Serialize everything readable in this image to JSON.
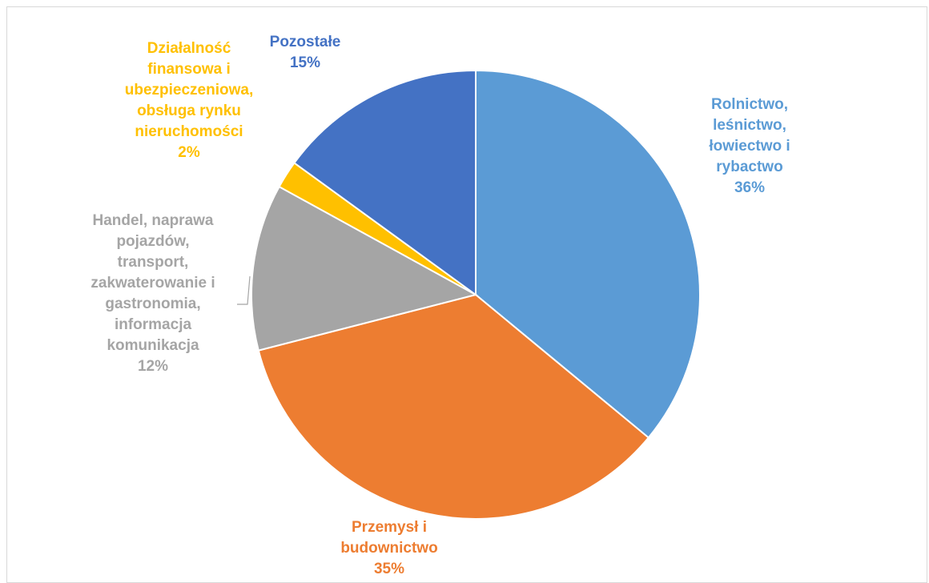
{
  "chart_data": {
    "type": "pie",
    "title": "",
    "legend": "none",
    "data_labels": "category name and percentage",
    "slices": [
      {
        "label_lines": [
          "Rolnictwo,",
          "leśnictwo,",
          "łowiectwo i",
          "rybactwo"
        ],
        "percent_text": "36%",
        "value": 36,
        "color": "#5b9bd5"
      },
      {
        "label_lines": [
          "Przemysł i",
          "budownictwo"
        ],
        "percent_text": "35%",
        "value": 35,
        "color": "#ed7d31"
      },
      {
        "label_lines": [
          "Handel, naprawa",
          "pojazdów,",
          "transport,",
          "zakwaterowanie i",
          "gastronomia,",
          "informacja",
          "komunikacja"
        ],
        "percent_text": "12%",
        "value": 12,
        "color": "#a5a5a5"
      },
      {
        "label_lines": [
          "Działalność",
          "finansowa i",
          "ubezpieczeniowa,",
          "obsługa rynku",
          "nieruchomości"
        ],
        "percent_text": "2%",
        "value": 2,
        "color": "#ffc000"
      },
      {
        "label_lines": [
          "Pozostałe"
        ],
        "percent_text": "15%",
        "value": 15,
        "color": "#4472c4"
      }
    ]
  }
}
